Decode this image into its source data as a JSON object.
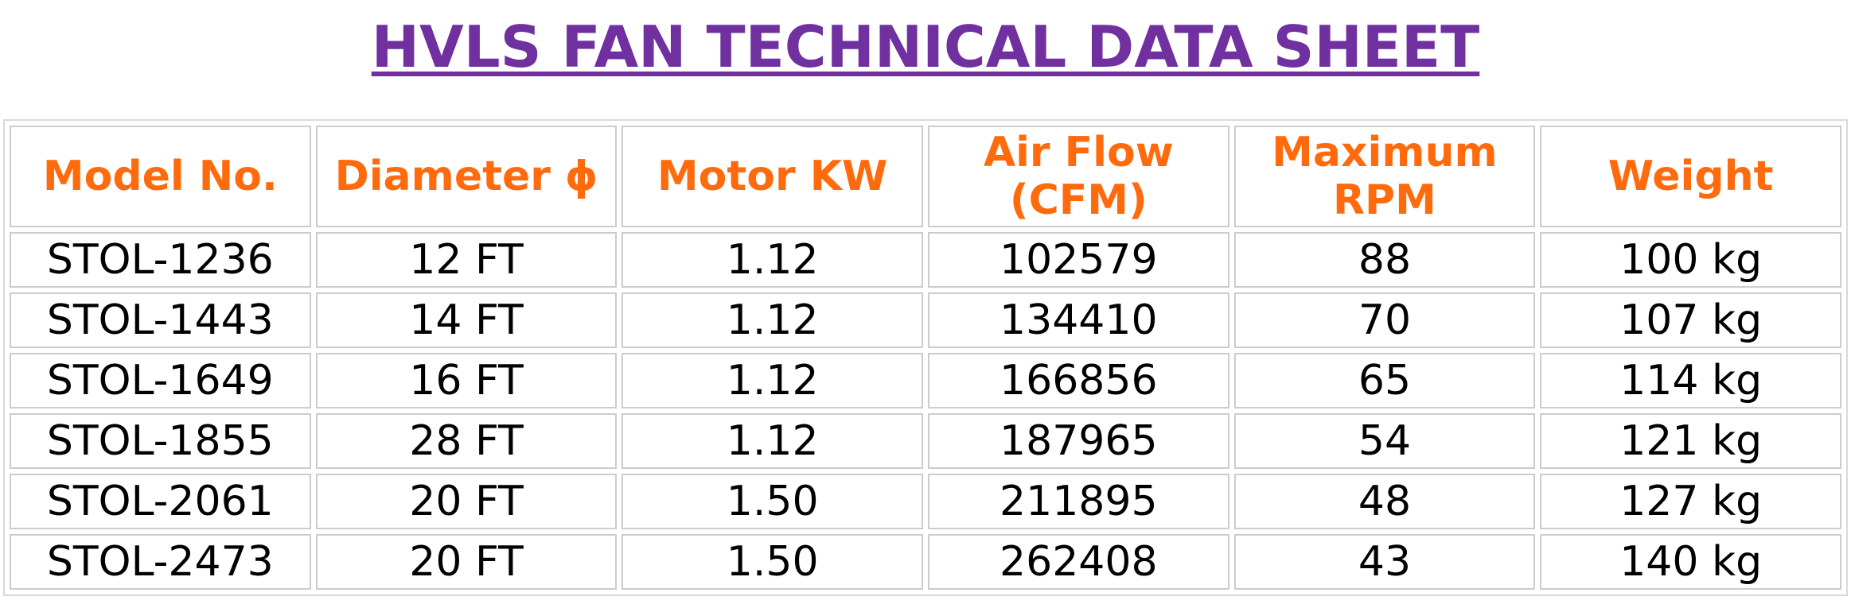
{
  "title": "HVLS FAN TECHNICAL DATA SHEET",
  "colors": {
    "title": "#7030a0",
    "header_text": "#ff6a0c",
    "cell_text": "#000000",
    "grid": "#cccccc"
  },
  "table": {
    "headers": [
      {
        "line1": "Model No.",
        "line2": ""
      },
      {
        "line1": "Diameter ϕ",
        "line2": ""
      },
      {
        "line1": "Motor KW",
        "line2": ""
      },
      {
        "line1": "Air Flow",
        "line2": "(CFM)"
      },
      {
        "line1": "Maximum",
        "line2": "RPM"
      },
      {
        "line1": "Weight",
        "line2": ""
      }
    ],
    "rows": [
      [
        "STOL-1236",
        "12 FT",
        "1.12",
        "102579",
        "88",
        "100 kg"
      ],
      [
        "STOL-1443",
        "14 FT",
        "1.12",
        "134410",
        "70",
        "107 kg"
      ],
      [
        "STOL-1649",
        "16 FT",
        "1.12",
        "166856",
        "65",
        "114 kg"
      ],
      [
        "STOL-1855",
        "28 FT",
        "1.12",
        "187965",
        "54",
        "121 kg"
      ],
      [
        "STOL-2061",
        "20 FT",
        "1.50",
        "211895",
        "48",
        "127 kg"
      ],
      [
        "STOL-2473",
        "20 FT",
        "1.50",
        "262408",
        "43",
        "140 kg"
      ]
    ]
  }
}
